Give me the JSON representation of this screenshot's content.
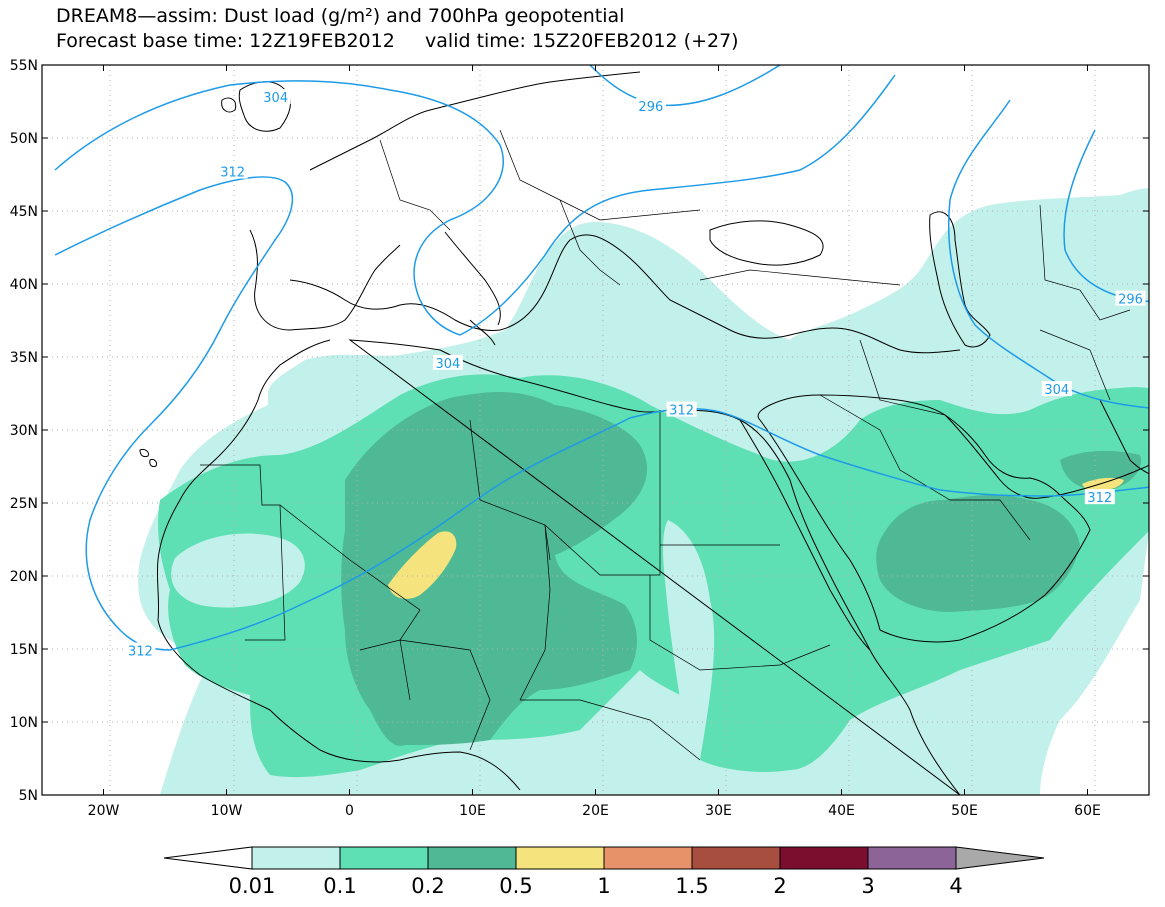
{
  "title": {
    "line1": "DREAM8—assim: Dust load (g/m²) and 700hPa geopotential",
    "line2": "Forecast base time: 12Z19FEB2012     valid time: 15Z20FEB2012 (+27)"
  },
  "axes": {
    "lon_ticks": [
      {
        "label": "20W",
        "value": -20
      },
      {
        "label": "10W",
        "value": -10
      },
      {
        "label": "0",
        "value": 0
      },
      {
        "label": "10E",
        "value": 10
      },
      {
        "label": "20E",
        "value": 20
      },
      {
        "label": "30E",
        "value": 30
      },
      {
        "label": "40E",
        "value": 40
      },
      {
        "label": "50E",
        "value": 50
      },
      {
        "label": "60E",
        "value": 60
      }
    ],
    "lat_ticks": [
      {
        "label": "55N",
        "value": 55
      },
      {
        "label": "50N",
        "value": 50
      },
      {
        "label": "45N",
        "value": 45
      },
      {
        "label": "40N",
        "value": 40
      },
      {
        "label": "35N",
        "value": 35
      },
      {
        "label": "30N",
        "value": 30
      },
      {
        "label": "25N",
        "value": 25
      },
      {
        "label": "20N",
        "value": 20
      },
      {
        "label": "15N",
        "value": 15
      },
      {
        "label": "10N",
        "value": 10
      },
      {
        "label": "5N",
        "value": 5
      }
    ],
    "lon_range": [
      -25,
      65
    ],
    "lat_range": [
      5,
      55
    ],
    "grid": true
  },
  "contour_labels": [
    {
      "text": "304",
      "lon": -6,
      "lat": 52.8
    },
    {
      "text": "312",
      "lon": -9.5,
      "lat": 47.7
    },
    {
      "text": "296",
      "lon": 24.5,
      "lat": 52.2
    },
    {
      "text": "304",
      "lon": 8,
      "lat": 34.6
    },
    {
      "text": "312",
      "lon": 27,
      "lat": 31.4
    },
    {
      "text": "304",
      "lon": 57.5,
      "lat": 32.8
    },
    {
      "text": "296",
      "lon": 63.5,
      "lat": 39
    },
    {
      "text": "312",
      "lon": 61,
      "lat": 25.4
    },
    {
      "text": "312",
      "lon": -17,
      "lat": 14.9
    }
  ],
  "colorbar": {
    "labels": [
      "0.01",
      "0.1",
      "0.2",
      "0.5",
      "1",
      "1.5",
      "2",
      "3",
      "4"
    ],
    "colors": [
      "#c2f0ea",
      "#5ee0b4",
      "#4fb894",
      "#f5e47e",
      "#e8926a",
      "#a84e3e",
      "#7b0e2e",
      "#8c6498"
    ],
    "under_color": "#ffffff",
    "over_color": "#a9a9a9"
  },
  "colors": {
    "dust_low": "#c2f0ea",
    "dust_mid": "#5ee0b4",
    "dust_high": "#4fb894",
    "dust_peak": "#f5e47e",
    "contour": "#1e9be8"
  }
}
